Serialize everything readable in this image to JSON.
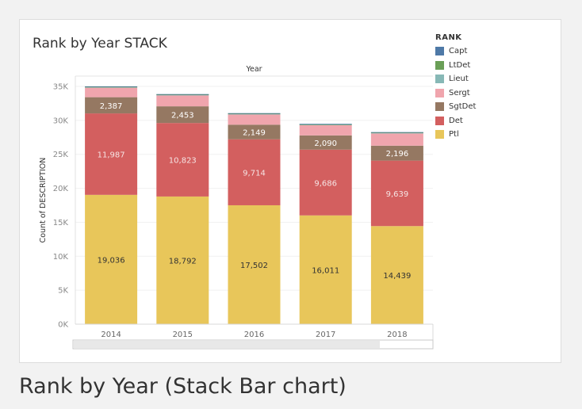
{
  "caption": "Rank by Year (Stack Bar chart)",
  "chart_data": {
    "type": "bar",
    "stacked": true,
    "title": "Rank by Year STACK",
    "xlabel": "Year",
    "ylabel": "Count of DESCRIPTION",
    "ylim": [
      0,
      35000
    ],
    "yticks": [
      0,
      5000,
      10000,
      15000,
      20000,
      25000,
      30000,
      35000
    ],
    "ytick_labels": [
      "0K",
      "5K",
      "10K",
      "15K",
      "20K",
      "25K",
      "30K",
      "35K"
    ],
    "categories": [
      "2014",
      "2015",
      "2016",
      "2017",
      "2018"
    ],
    "legend_title": "RANK",
    "legend_position": "right",
    "series": [
      {
        "name": "Ptl",
        "color": "#e8c65a",
        "label_color": "#333333",
        "values": [
          19036,
          18792,
          17502,
          16011,
          14439
        ],
        "labels": [
          "19,036",
          "18,792",
          "17,502",
          "16,011",
          "14,439"
        ]
      },
      {
        "name": "Det",
        "color": "#d35f5f",
        "label_color": "#f6e4e4",
        "values": [
          11987,
          10823,
          9714,
          9686,
          9639
        ],
        "labels": [
          "11,987",
          "10,823",
          "9,714",
          "9,686",
          "9,639"
        ]
      },
      {
        "name": "SgtDet",
        "color": "#957862",
        "label_color": "#ffffff",
        "values": [
          2387,
          2453,
          2149,
          2090,
          2196
        ],
        "labels": [
          "2,387",
          "2,453",
          "2,149",
          "2,090",
          "2,196"
        ]
      },
      {
        "name": "Sergt",
        "color": "#f0a5ad",
        "values": [
          1400,
          1600,
          1500,
          1500,
          1800
        ]
      },
      {
        "name": "Lieut",
        "color": "#87b8b6",
        "values": [
          100,
          100,
          100,
          100,
          100
        ]
      },
      {
        "name": "LtDet",
        "color": "#6a9f57",
        "values": [
          40,
          40,
          40,
          40,
          40
        ]
      },
      {
        "name": "Capt",
        "color": "#4e79a7",
        "values": [
          60,
          60,
          60,
          60,
          60
        ]
      }
    ],
    "legend_order": [
      "Capt",
      "LtDet",
      "Lieut",
      "Sergt",
      "SgtDet",
      "Det",
      "Ptl"
    ]
  }
}
